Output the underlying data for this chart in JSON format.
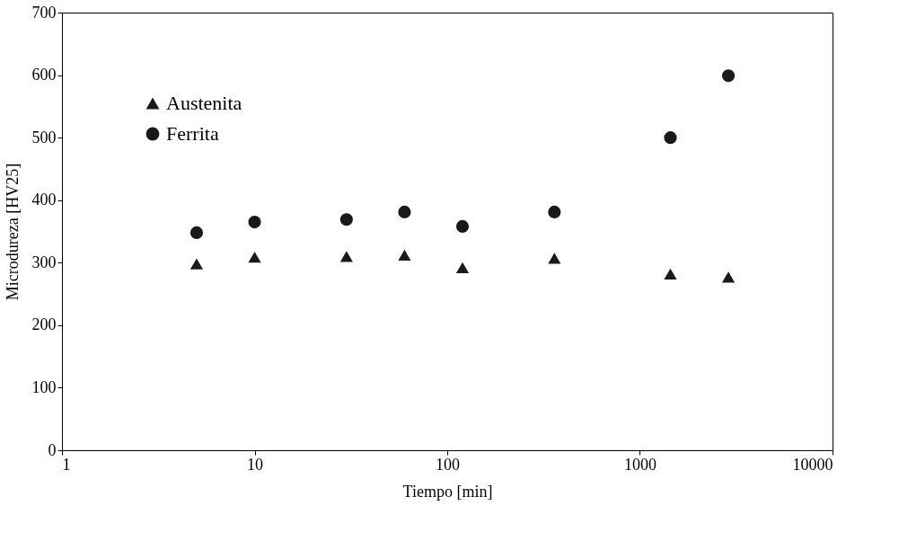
{
  "chart_data": {
    "type": "scatter",
    "xlabel": "Tiempo [min]",
    "ylabel": "Microdureza [HV25]",
    "x": [
      5,
      10,
      30,
      60,
      120,
      360,
      1440,
      2880
    ],
    "series": [
      {
        "name": "Austenita",
        "color": "#1a1a1a",
        "marker": "triangle",
        "values": [
          298,
          309,
          310,
          312,
          292,
          307,
          282,
          277
        ]
      },
      {
        "name": "Ferrita",
        "color": "#1a1a1a",
        "marker": "circle",
        "values": [
          348,
          365,
          369,
          381,
          358,
          381,
          500,
          599
        ]
      }
    ],
    "log": "x",
    "xlim": [
      1,
      10000
    ],
    "xticks": [
      1,
      10,
      100,
      1000,
      10000
    ],
    "ylim": [
      0,
      700
    ],
    "yticks": [
      0,
      100,
      200,
      300,
      400,
      500,
      600,
      700
    ],
    "grid": false,
    "legend": "top left"
  }
}
